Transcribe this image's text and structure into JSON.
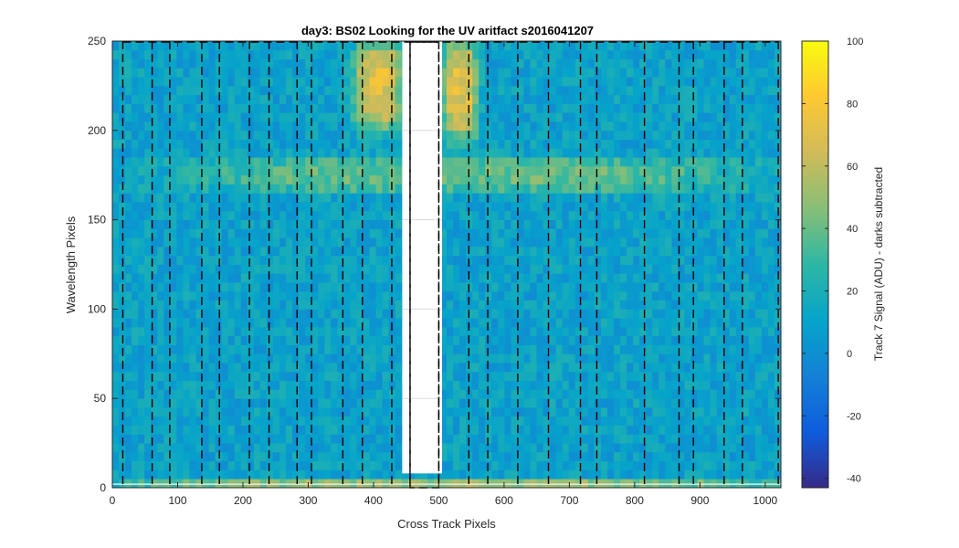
{
  "chart_data": {
    "type": "heatmap",
    "title": "day3: BS02  Looking for the UV aritfact  s2016041207",
    "xlabel": "Cross Track Pixels",
    "ylabel": "Wavelength Pixels",
    "colorbar_label": "Track 7 Signal (ADU) - darks subtracted",
    "xlim": [
      0,
      1024
    ],
    "ylim": [
      0,
      250
    ],
    "clim": [
      -43,
      100
    ],
    "colormap": "parula",
    "colormap_stops": [
      "#352a87",
      "#0f5cdd",
      "#1481d6",
      "#06a4ca",
      "#2eb7a4",
      "#87bf77",
      "#d1bb59",
      "#fec832",
      "#f9fb0e"
    ],
    "x_ticks": [
      0,
      100,
      200,
      300,
      400,
      500,
      600,
      700,
      800,
      900,
      1000
    ],
    "y_ticks": [
      0,
      50,
      100,
      150,
      200,
      250
    ],
    "colorbar_ticks": [
      -40,
      -20,
      0,
      20,
      40,
      60,
      80,
      100
    ],
    "grid": true,
    "saturated_region": {
      "x": [
        444,
        505
      ],
      "y": [
        8,
        250
      ],
      "color": "#ffffff"
    },
    "dashed_vertical_lines_x": [
      16,
      61,
      88,
      137,
      164,
      210,
      240,
      283,
      305,
      353,
      383,
      428,
      456,
      500,
      546,
      575,
      621,
      668,
      717,
      742,
      815,
      868,
      890,
      937,
      965,
      1020
    ],
    "dashed_box": {
      "x": [
        456,
        500
      ],
      "y": [
        0,
        250
      ]
    },
    "dashed_top_line_y": 250,
    "features": [
      {
        "name": "background",
        "x": [
          0,
          1024
        ],
        "y": [
          0,
          250
        ],
        "value": 10
      },
      {
        "name": "left bright column",
        "x": [
          370,
          444
        ],
        "y": [
          200,
          250
        ],
        "value": 70
      },
      {
        "name": "right bright column",
        "x": [
          505,
          560
        ],
        "y": [
          195,
          250
        ],
        "value": 70
      },
      {
        "name": "spectral band",
        "x": [
          120,
          960
        ],
        "y": [
          165,
          185
        ],
        "value": 40
      },
      {
        "name": "floor strip",
        "x": [
          0,
          1024
        ],
        "y": [
          0,
          5
        ],
        "value": 50
      }
    ]
  }
}
